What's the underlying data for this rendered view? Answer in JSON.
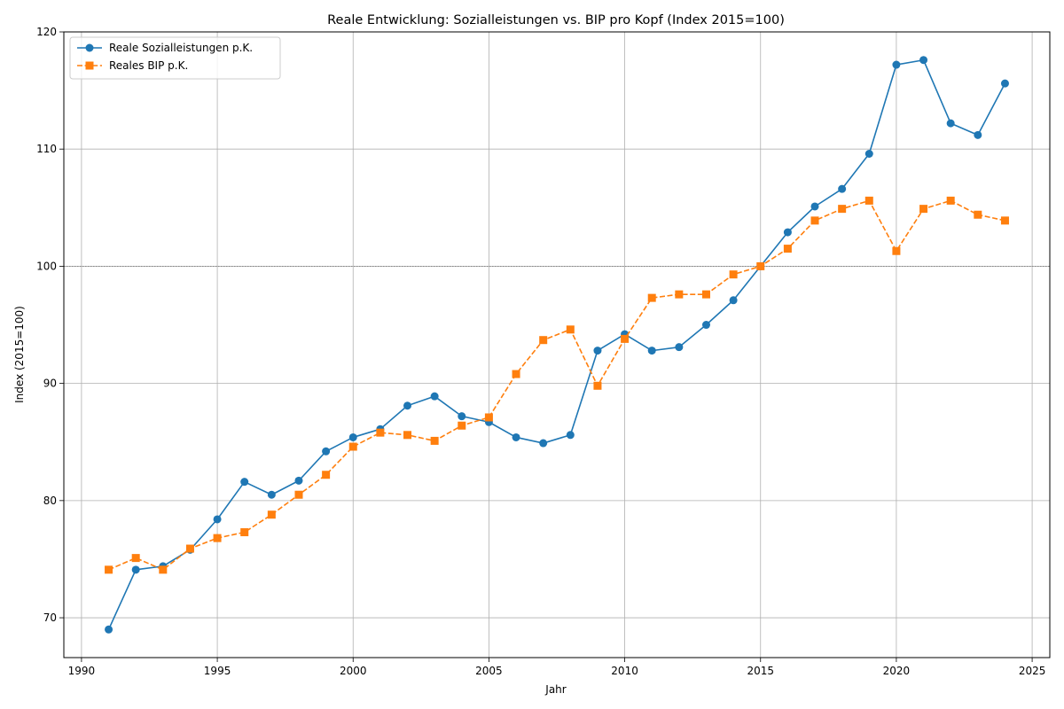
{
  "chart_data": {
    "type": "line",
    "title": "Reale Entwicklung: Sozialleistungen vs. BIP pro Kopf (Index 2015=100)",
    "xlabel": "Jahr",
    "ylabel": "Index (2015=100)",
    "xlim": [
      1989.35,
      2025.65
    ],
    "ylim": [
      66.6,
      120
    ],
    "xticks": [
      1990,
      1995,
      2000,
      2005,
      2010,
      2015,
      2020,
      2025
    ],
    "yticks": [
      70,
      80,
      90,
      100,
      110,
      120
    ],
    "grid": true,
    "reference_line": 100,
    "legend": {
      "position": "top-left"
    },
    "x": [
      1991,
      1992,
      1993,
      1994,
      1995,
      1996,
      1997,
      1998,
      1999,
      2000,
      2001,
      2002,
      2003,
      2004,
      2005,
      2006,
      2007,
      2008,
      2009,
      2010,
      2011,
      2012,
      2013,
      2014,
      2015,
      2016,
      2017,
      2018,
      2019,
      2020,
      2021,
      2022,
      2023,
      2024
    ],
    "series": [
      {
        "name": "Reale Sozialleistungen p.K.",
        "color": "#1f77b4",
        "style": "solid",
        "marker": "circle",
        "values": [
          69.0,
          74.1,
          74.4,
          75.8,
          78.4,
          81.6,
          80.5,
          81.7,
          84.2,
          85.4,
          86.1,
          88.1,
          88.9,
          87.2,
          86.7,
          85.4,
          84.9,
          85.6,
          92.8,
          94.2,
          92.8,
          93.1,
          95.0,
          97.1,
          100.0,
          102.9,
          105.1,
          106.6,
          109.6,
          117.2,
          117.6,
          112.2,
          111.2,
          115.6
        ]
      },
      {
        "name": "Reales BIP p.K.",
        "color": "#ff7f0e",
        "style": "dashed",
        "marker": "square",
        "values": [
          74.1,
          75.1,
          74.1,
          75.9,
          76.8,
          77.3,
          78.8,
          80.5,
          82.2,
          84.6,
          85.8,
          85.6,
          85.1,
          86.4,
          87.1,
          90.8,
          93.7,
          94.6,
          89.8,
          93.8,
          97.3,
          97.6,
          97.6,
          99.3,
          100.0,
          101.5,
          103.9,
          104.9,
          105.6,
          101.3,
          104.9,
          105.6,
          104.4,
          103.9
        ]
      }
    ]
  }
}
